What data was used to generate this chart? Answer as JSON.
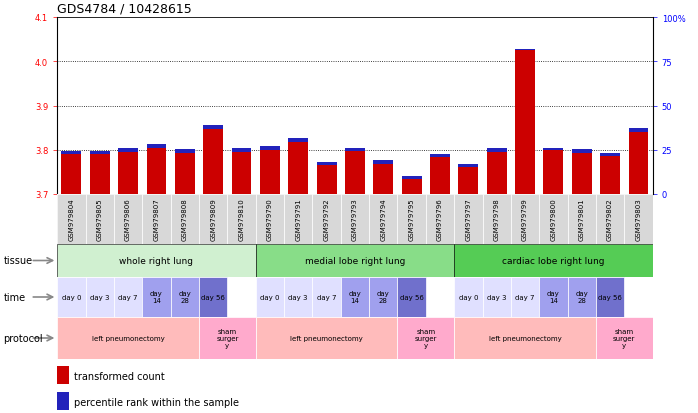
{
  "title": "GDS4784 / 10428615",
  "samples": [
    "GSM979804",
    "GSM979805",
    "GSM979806",
    "GSM979807",
    "GSM979808",
    "GSM979809",
    "GSM979810",
    "GSM979790",
    "GSM979791",
    "GSM979792",
    "GSM979793",
    "GSM979794",
    "GSM979795",
    "GSM979796",
    "GSM979797",
    "GSM979798",
    "GSM979799",
    "GSM979800",
    "GSM979801",
    "GSM979802",
    "GSM979803"
  ],
  "red_values": [
    3.79,
    3.79,
    3.795,
    3.805,
    3.793,
    3.847,
    3.795,
    3.8,
    3.818,
    3.765,
    3.797,
    3.768,
    3.733,
    3.783,
    3.76,
    3.795,
    4.025,
    3.8,
    3.793,
    3.785,
    3.84
  ],
  "blue_heights": [
    0.008,
    0.008,
    0.008,
    0.008,
    0.008,
    0.008,
    0.008,
    0.008,
    0.008,
    0.008,
    0.008,
    0.008,
    0.008,
    0.008,
    0.008,
    0.008,
    0.003,
    0.003,
    0.008,
    0.008,
    0.01
  ],
  "y_min": 3.7,
  "y_max": 4.1,
  "y_ticks_red": [
    3.7,
    3.8,
    3.9,
    4.0,
    4.1
  ],
  "y_ticks_blue": [
    0,
    25,
    50,
    75,
    100
  ],
  "y_ticks_blue_labels": [
    "0",
    "25",
    "50",
    "75",
    "100%"
  ],
  "tissue_groups": [
    {
      "label": "whole right lung",
      "start": 0,
      "end": 6,
      "color": "#d0f0d0"
    },
    {
      "label": "medial lobe right lung",
      "start": 7,
      "end": 13,
      "color": "#88dd88"
    },
    {
      "label": "cardiac lobe right lung",
      "start": 14,
      "end": 20,
      "color": "#55cc55"
    }
  ],
  "time_sequence": [
    "day 0",
    "day 3",
    "day 7",
    "day\n14",
    "day\n28",
    "day 56"
  ],
  "time_colors_seq": [
    "#e0e0ff",
    "#e0e0ff",
    "#e0e0ff",
    "#a0a0ee",
    "#a0a0ee",
    "#7070cc"
  ],
  "protocol_groups": [
    {
      "label": "left pneumonectomy",
      "start": 0,
      "end": 4,
      "color": "#ffbbbb"
    },
    {
      "label": "sham\nsurger\ny",
      "start": 5,
      "end": 6,
      "color": "#ffaacc"
    },
    {
      "label": "left pneumonectomy",
      "start": 7,
      "end": 11,
      "color": "#ffbbbb"
    },
    {
      "label": "sham\nsurger\ny",
      "start": 12,
      "end": 13,
      "color": "#ffaacc"
    },
    {
      "label": "left pneumonectomy",
      "start": 14,
      "end": 18,
      "color": "#ffbbbb"
    },
    {
      "label": "sham\nsurger\ny",
      "start": 19,
      "end": 20,
      "color": "#ffaacc"
    }
  ],
  "bar_width": 0.7,
  "base_value": 3.7,
  "red_color": "#cc0000",
  "blue_color": "#2222bb",
  "background_color": "#ffffff",
  "title_fontsize": 9,
  "tick_fontsize": 6,
  "label_fontsize": 7,
  "sample_fontsize": 5,
  "annot_fontsize": 6.5,
  "legend_fontsize": 7
}
